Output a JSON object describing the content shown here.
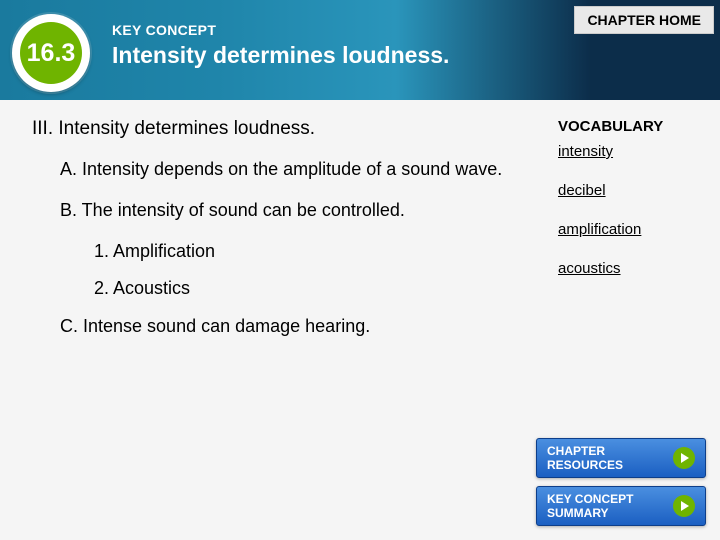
{
  "colors": {
    "header_grad_start": "#1a7a9e",
    "header_grad_mid": "#2a95bb",
    "header_grad_end": "#0c2d4a",
    "badge_green": "#6fb400",
    "badge_text": "#ffffff",
    "button_grad_top": "#4a8fe0",
    "button_grad_bottom": "#1b5fc2",
    "page_bg": "#f5f5f5",
    "text": "#000000"
  },
  "badge": {
    "section_number": "16.3"
  },
  "header": {
    "key_concept_label": "KEY CONCEPT",
    "title": "Intensity determines loudness.",
    "chapter_home": "CHAPTER HOME"
  },
  "outline": {
    "heading": "III. Intensity determines loudness.",
    "A": "A. Intensity depends on the amplitude of a sound wave.",
    "B": "B. The intensity of sound can be controlled.",
    "B1": "1. Amplification",
    "B2": "2. Acoustics",
    "C": "C. Intense sound can damage hearing."
  },
  "vocab": {
    "header": "VOCABULARY",
    "terms": [
      "intensity",
      "decibel",
      "amplification",
      "acoustics"
    ]
  },
  "footer": {
    "resources": "CHAPTER RESOURCES",
    "summary": "KEY CONCEPT SUMMARY"
  }
}
